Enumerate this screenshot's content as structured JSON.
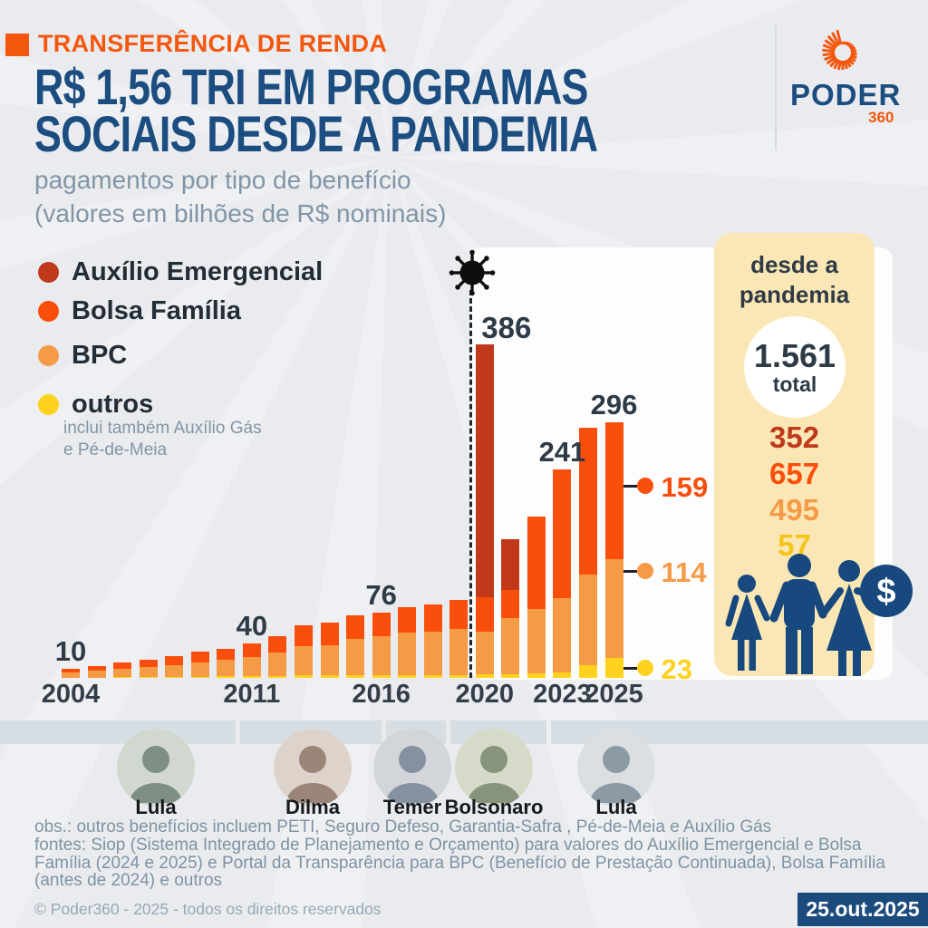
{
  "kicker": "TRANSFERÊNCIA DE RENDA",
  "title_line1": "R$ 1,56 TRI EM PROGRAMAS",
  "title_line2": "SOCIAIS DESDE A PANDEMIA",
  "subtitle_line1": "pagamentos por tipo de benefício",
  "subtitle_line2": "(valores em bilhões de R$ nominais)",
  "logo": {
    "word": "PODER",
    "sub": "360"
  },
  "colors": {
    "auxilio_emergencial": "#c0391a",
    "bolsa_familia": "#fa4e0c",
    "bpc": "#f59a45",
    "outros": "#ffd21e",
    "navy": "#1b4d80",
    "accent_orange": "#f4570e",
    "dark_text": "#2e3a45",
    "figure_navy": "#17497e",
    "cream": "#fbe7b5"
  },
  "legend": {
    "items": [
      {
        "label": "Auxílio Emergencial",
        "color": "#c0391a"
      },
      {
        "label": "Bolsa Família",
        "color": "#fa4e0c"
      },
      {
        "label": "BPC",
        "color": "#f59a45"
      },
      {
        "label": "outros",
        "color": "#ffd21e"
      }
    ],
    "note_line1": "inclui também Auxílio Gás",
    "note_line2": "e Pé-de-Meia"
  },
  "chart_data": {
    "type": "bar",
    "stacked": true,
    "title": "R$ 1,56 tri em programas sociais desde a pandemia",
    "subtitle": "pagamentos por tipo de benefício",
    "unit": "bilhões de R$ nominais",
    "x": [
      2004,
      2005,
      2006,
      2007,
      2008,
      2009,
      2010,
      2011,
      2012,
      2013,
      2014,
      2015,
      2016,
      2017,
      2018,
      2019,
      2020,
      2021,
      2022,
      2023,
      2024,
      2025
    ],
    "series": [
      {
        "name": "Auxílio Emergencial",
        "color": "#c0391a",
        "values": [
          0,
          0,
          0,
          0,
          0,
          0,
          0,
          0,
          0,
          0,
          0,
          0,
          0,
          0,
          0,
          0,
          293,
          59,
          0,
          0,
          0,
          0
        ]
      },
      {
        "name": "Bolsa Família",
        "color": "#fa4e0c",
        "values": [
          4,
          6,
          7,
          8,
          10,
          12,
          13,
          16,
          19,
          24,
          26,
          27,
          28,
          30,
          31,
          33,
          39,
          33,
          107,
          149,
          170,
          159
        ]
      },
      {
        "name": "BPC",
        "color": "#f59a45",
        "values": [
          6,
          8,
          10,
          12,
          14,
          17,
          19,
          22,
          27,
          34,
          35,
          42,
          45,
          49,
          51,
          54,
          50,
          65,
          75,
          86,
          105,
          114
        ]
      },
      {
        "name": "outros",
        "color": "#ffd21e",
        "values": [
          0,
          0,
          1,
          1,
          1,
          1,
          2,
          2,
          2,
          3,
          3,
          3,
          3,
          3,
          3,
          3,
          4,
          4,
          5,
          6,
          15,
          23
        ]
      }
    ],
    "bar_labels": [
      {
        "year": 2004,
        "text": "10"
      },
      {
        "year": 2011,
        "text": "40"
      },
      {
        "year": 2016,
        "text": "76"
      },
      {
        "year": 2020,
        "text": "386"
      },
      {
        "year": 2023,
        "text": "241"
      },
      {
        "year": 2025,
        "text": "296"
      }
    ],
    "x_ticks": [
      "2004",
      "2011",
      "2016",
      "2020",
      "2023",
      "2025"
    ],
    "x_tick_years": [
      2004,
      2011,
      2016,
      2020,
      2023,
      2025
    ],
    "pandemic_divider_year": 2020,
    "end_markers": [
      {
        "text": "159",
        "series": "Bolsa Família",
        "color": "#fa4e0c"
      },
      {
        "text": "114",
        "series": "BPC",
        "color": "#f59a45"
      },
      {
        "text": "23",
        "series": "outros",
        "color": "#ffd21e"
      }
    ],
    "legend_position": "left",
    "grid": false,
    "annotation": "virus icon with dashed line marking 2020 (start of pandemic)"
  },
  "panel": {
    "heading_line1": "desde a",
    "heading_line2": "pandemia",
    "total_value": "1.561",
    "total_label": "total",
    "totals": [
      {
        "value": "352",
        "series": "Auxílio Emergencial",
        "color": "#c0391a"
      },
      {
        "value": "657",
        "series": "Bolsa Família",
        "color": "#fa4e0c"
      },
      {
        "value": "495",
        "series": "BPC",
        "color": "#f59a45"
      },
      {
        "value": "57",
        "series": "outros",
        "color": "#f5c518"
      }
    ]
  },
  "timeline": {
    "presidents": [
      {
        "name": "Lula"
      },
      {
        "name": "Dilma"
      },
      {
        "name": "Temer"
      },
      {
        "name": "Bolsonaro"
      },
      {
        "name": "Lula"
      }
    ]
  },
  "footer": {
    "obs": "obs.: outros benefícios incluem PETI, Seguro Defeso, Garantia-Safra , Pé-de-Meia e Auxílio Gás",
    "fontes": "fontes: Siop (Sistema Integrado de Planejamento e Orçamento) para valores do Auxílio Emergencial e Bolsa Família (2024 e 2025) e Portal da Transparência para BPC (Benefício de Prestação Continuada), Bolsa Família (antes de 2024) e outros",
    "copyright": "© Poder360 - 2025 - todos os direitos reservados",
    "date_badge": "25.out.2025"
  }
}
